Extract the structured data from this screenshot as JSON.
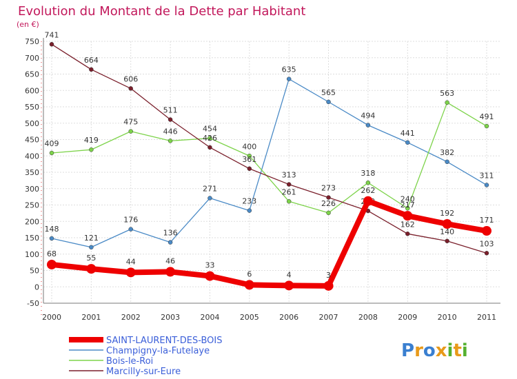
{
  "chart_data": {
    "type": "line",
    "title": "Evolution du Montant de la Dette par Habitant",
    "ylabel": "(en €)",
    "xlabel": "",
    "categories": [
      "2000",
      "2001",
      "2002",
      "2003",
      "2004",
      "2005",
      "2006",
      "2007",
      "2008",
      "2009",
      "2010",
      "2011"
    ],
    "ylim": [
      -50,
      750
    ],
    "yticks": [
      -50,
      0,
      50,
      100,
      150,
      200,
      250,
      300,
      350,
      400,
      450,
      500,
      550,
      600,
      650,
      700,
      750
    ],
    "grid": true,
    "legend_position": "bottom-left",
    "series": [
      {
        "name": "SAINT-LAURENT-DES-BOIS",
        "color": "#ee0000",
        "values": [
          68,
          55,
          44,
          46,
          33,
          6,
          4,
          3,
          262,
          217,
          192,
          171
        ]
      },
      {
        "name": "Champigny-la-Futelaye",
        "color": "#4a8ac6",
        "values": [
          148,
          121,
          176,
          136,
          271,
          233,
          635,
          565,
          494,
          441,
          382,
          311
        ]
      },
      {
        "name": "Bois-le-Roi",
        "color": "#7dd34a",
        "values": [
          409,
          419,
          475,
          446,
          454,
          400,
          261,
          226,
          318,
          240,
          563,
          491
        ]
      },
      {
        "name": "Marcilly-sur-Eure",
        "color": "#7a1f2b",
        "values": [
          741,
          664,
          606,
          511,
          426,
          361,
          313,
          273,
          232,
          162,
          140,
          103
        ]
      }
    ]
  },
  "logo": {
    "letters": [
      "P",
      "r",
      "o",
      "x",
      "i",
      "t",
      "i"
    ],
    "colors": [
      "#3a7fd0",
      "#e89a1a",
      "#3a7fd0",
      "#e89a1a",
      "#55b030",
      "#e89a1a",
      "#55b030"
    ]
  }
}
